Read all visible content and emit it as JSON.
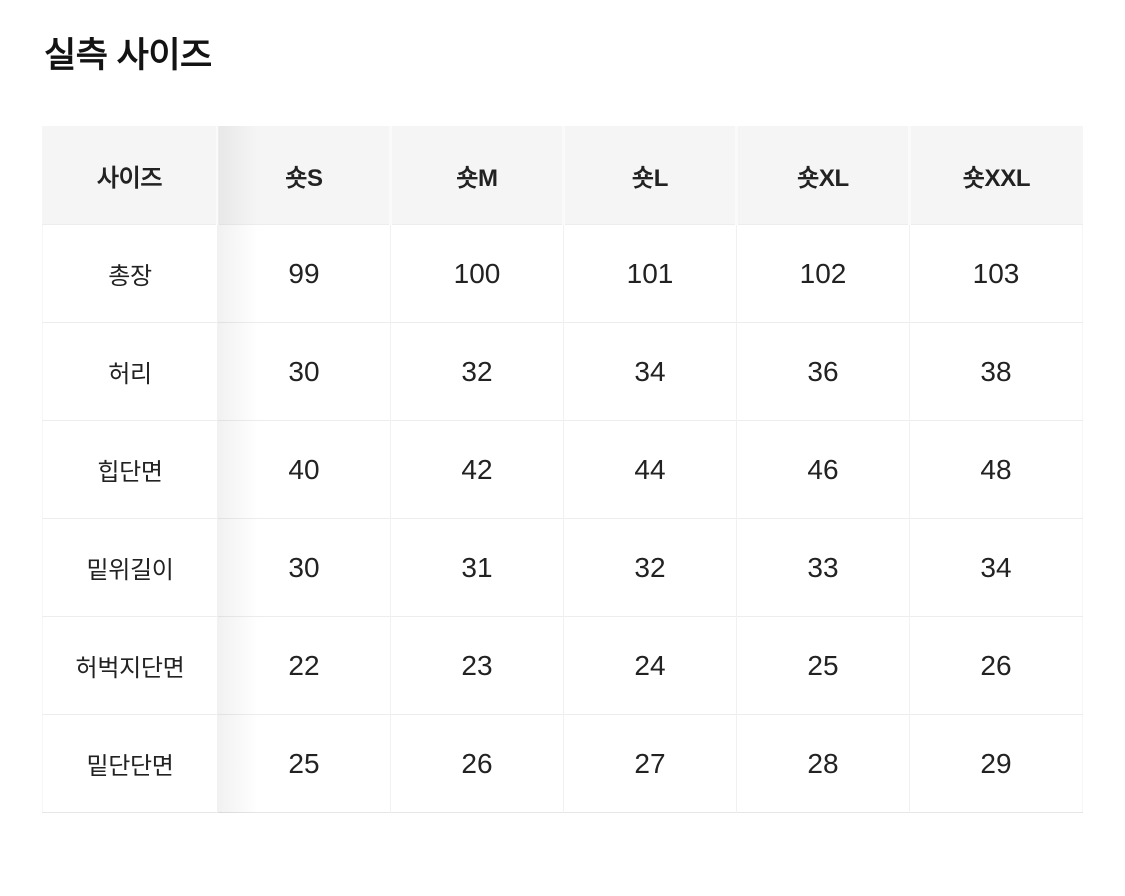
{
  "section": {
    "title": "실측 사이즈"
  },
  "table": {
    "columns": [
      "사이즈",
      "숏S",
      "숏M",
      "숏L",
      "숏XL",
      "숏XXL"
    ],
    "rows": [
      {
        "label": "총장",
        "values": [
          "99",
          "100",
          "101",
          "102",
          "103"
        ]
      },
      {
        "label": "허리",
        "values": [
          "30",
          "32",
          "34",
          "36",
          "38"
        ]
      },
      {
        "label": "힙단면",
        "values": [
          "40",
          "42",
          "44",
          "46",
          "48"
        ]
      },
      {
        "label": "밑위길이",
        "values": [
          "30",
          "31",
          "32",
          "33",
          "34"
        ]
      },
      {
        "label": "허벅지단면",
        "values": [
          "22",
          "23",
          "24",
          "25",
          "26"
        ]
      },
      {
        "label": "밑단단면",
        "values": [
          "25",
          "26",
          "27",
          "28",
          "29"
        ]
      }
    ]
  },
  "colors": {
    "page_bg": "#ffffff",
    "header_bg": "#f5f5f5",
    "header_divider": "#fafafa",
    "body_divider": "#f1f1f1",
    "row_border": "#ededed",
    "table_bottom_border": "#e6e6e6",
    "text": "#222222",
    "title_text": "#131313"
  }
}
